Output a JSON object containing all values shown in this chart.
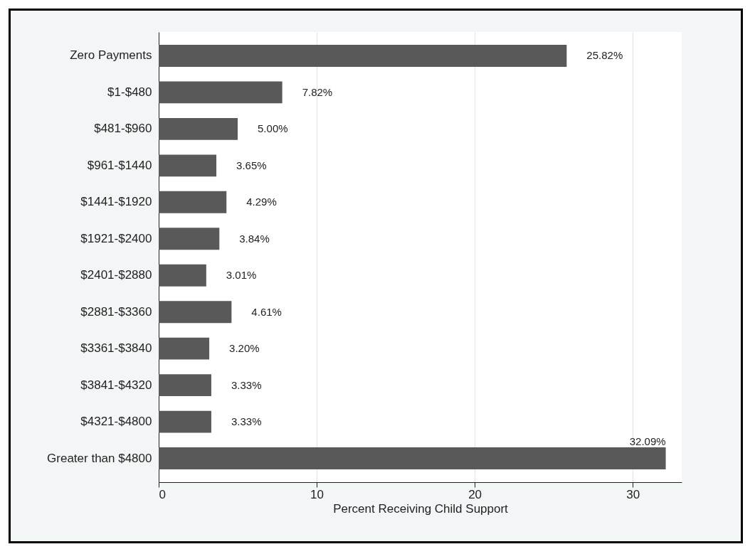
{
  "chart_data": {
    "type": "bar",
    "orientation": "horizontal",
    "xlabel": "Percent Receiving Child Support",
    "categories": [
      "Zero Payments",
      "$1-$480",
      "$481-$960",
      "$961-$1440",
      "$1441-$1920",
      "$1921-$2400",
      "$2401-$2880",
      "$2881-$3360",
      "$3361-$3840",
      "$3841-$4320",
      "$4321-$4800",
      "Greater than $4800"
    ],
    "values": [
      25.82,
      7.82,
      5.0,
      3.65,
      4.29,
      3.84,
      3.01,
      4.61,
      3.2,
      3.33,
      3.33,
      32.09
    ],
    "value_labels": [
      "25.82%",
      "7.82%",
      "5.00%",
      "3.65%",
      "4.29%",
      "3.84%",
      "3.01%",
      "4.61%",
      "3.20%",
      "3.33%",
      "3.33%",
      "32.09%"
    ],
    "color": "#595959",
    "xlim": [
      0,
      33.1
    ],
    "xticks": [
      0,
      10,
      20,
      30
    ],
    "grid": "x"
  }
}
